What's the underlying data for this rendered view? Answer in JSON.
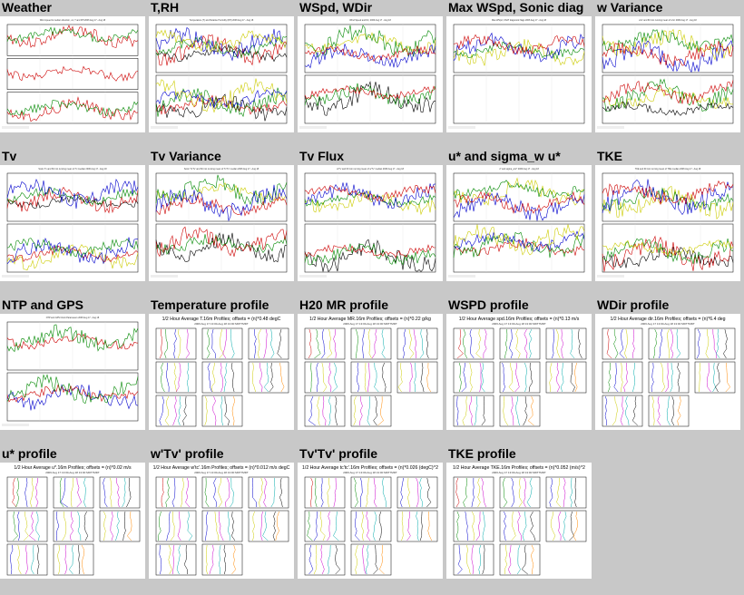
{
  "page": {
    "background": "#c8c8c8"
  },
  "tiles": [
    {
      "id": "weather",
      "title": "Weather",
      "kind": "ts",
      "panels": [
        [
          "#cc0000",
          "#008800"
        ],
        [
          "#cc0000"
        ],
        [
          "#cc0000",
          "#008800"
        ]
      ],
      "caption": "Wind speed & median direction, u1, T and RH  2006 Aug 17 - Aug 18"
    },
    {
      "id": "t-rh",
      "title": "T,RH",
      "kind": "ts",
      "panels": [
        [
          "#000000",
          "#cc0000",
          "#008800",
          "#0000cc",
          "#cccc00"
        ],
        [
          "#000000",
          "#cc0000",
          "#008800",
          "#0000cc",
          "#cccc00"
        ]
      ],
      "caption": "Temperature (T) and Relative Humidity (RH) 2006 Aug 17 - Aug 18"
    },
    {
      "id": "wspd-wdir",
      "title": "WSpd, WDir",
      "kind": "ts",
      "panels": [
        [
          "#cccc00",
          "#008800",
          "#0000cc",
          "#cc0000"
        ],
        [
          "#000000",
          "#008800",
          "#cc0000"
        ]
      ],
      "caption": "Wind Speed and Dir, 2006 Aug 17 - Aug 18"
    },
    {
      "id": "max-wspd",
      "title": "Max WSpd, Sonic diag",
      "kind": "ts",
      "panels": [
        [
          "#cccc00",
          "#008800",
          "#0000cc",
          "#cc0000"
        ],
        []
      ],
      "caption": "Max WSpd, CSAT diagnostic flags  2006 Aug 17 - Aug 18"
    },
    {
      "id": "w-variance",
      "title": "w Variance",
      "kind": "ts",
      "panels": [
        [
          "#cccc00",
          "#008800",
          "#0000cc",
          "#cc0000"
        ],
        [
          "#cccc00",
          "#008800",
          "#cc0000",
          "#000000"
        ]
      ],
      "caption": "w'w' and 60 min running mean of w'w'  2006 Aug 17 - Aug 18"
    },
    {
      "id": "tv",
      "title": "Tv",
      "kind": "ts",
      "panels": [
        [
          "#000000",
          "#cc0000",
          "#008800",
          "#0000cc"
        ],
        [
          "#cccc00",
          "#cc0000",
          "#0000cc",
          "#008800"
        ]
      ],
      "caption": "Sonic Tv and 60 min running mean of Tv median 2006 Aug 17 - Aug 18"
    },
    {
      "id": "tv-variance",
      "title": "Tv Variance",
      "kind": "ts",
      "panels": [
        [
          "#cccc00",
          "#008800",
          "#cc0000",
          "#0000cc"
        ],
        [
          "#000000",
          "#008800",
          "#cc0000"
        ]
      ],
      "caption": "Sonic Tv'Tv' and 60 min running mean of Tv'Tv' median 2006 Aug 17 - Aug 18"
    },
    {
      "id": "tv-flux",
      "title": "Tv Flux",
      "kind": "ts",
      "panels": [
        [
          "#cccc00",
          "#008800",
          "#0000cc",
          "#cc0000"
        ],
        [
          "#000000",
          "#008800",
          "#cc0000"
        ]
      ],
      "caption": "w'Tv' and 60 min running mean of w'Tv' median 2006 Aug 17 - Aug 18"
    },
    {
      "id": "ustar",
      "title": "u* and sigma_w u*",
      "kind": "ts",
      "panels": [
        [
          "#cccc00",
          "#008800",
          "#0000cc",
          "#cc0000"
        ],
        [
          "#cc0000",
          "#008800",
          "#0000cc",
          "#cccc00"
        ]
      ],
      "caption": "u* and sigma_w/u*  2006 Aug 17 - Aug 18"
    },
    {
      "id": "tke",
      "title": "TKE",
      "kind": "ts",
      "panels": [
        [
          "#cccc00",
          "#008800",
          "#0000cc",
          "#cc0000"
        ],
        [
          "#000000",
          "#cc0000",
          "#008800",
          "#cccc00"
        ]
      ],
      "caption": "TKE and 60 min running mean of TKE median 2006 Aug 17 - Aug 18"
    },
    {
      "id": "ntp-gps",
      "title": "NTP and GPS",
      "kind": "ts",
      "panels": [
        [
          "#cc0000",
          "#008800"
        ],
        [
          "#0000cc",
          "#cc0000",
          "#008800"
        ]
      ],
      "caption": "NTP and GPS Clock Parameters 2006 Aug 17 - Aug 18"
    },
    {
      "id": "temperature-profile",
      "title": "Temperature profile",
      "kind": "profile",
      "caption": "1/2 Hour Average T.16m Profiles; offsets = (n)*0.48 degC",
      "sub": "2006 Aug 17 13:00-Aug 18 13:00 MDT7MDT"
    },
    {
      "id": "h2o-mr-profile",
      "title": "H20 MR profile",
      "kind": "profile",
      "caption": "1/2 Hour Average MR.16m Profiles; offsets = (n)*0.22 g/kg",
      "sub": "2006 Aug 17 13:00-Aug 18 13:00 MDT7MDT"
    },
    {
      "id": "wspd-profile",
      "title": "WSPD profile",
      "kind": "profile",
      "caption": "1/2 Hour Average spd.16m Profiles; offsets = (n)*0.13 m/s",
      "sub": "2006 Aug 17 13:00-Aug 18 13:00 MDT7MDT"
    },
    {
      "id": "wdir-profile",
      "title": "WDir profile",
      "kind": "profile",
      "caption": "1/2 Hour Average dir.16m Profiles; offsets = (n)*6.4 deg",
      "sub": "2006 Aug 17 13:00-Aug 18 13:00 MDT7MDT"
    },
    {
      "id": "ustar-profile",
      "title": "u* profile",
      "kind": "profile",
      "caption": "1/2 Hour Average u*.16m Profiles; offsets = (n)*0.02 m/s",
      "sub": "2006 Aug 17 13:00-Aug 18 13:00 MDT7MDT"
    },
    {
      "id": "wtv-profile",
      "title": "w'Tv' profile",
      "kind": "profile",
      "caption": "1/2 Hour Average w'tc'.16m Profiles; offsets = (n)*0.012 m/s degC",
      "sub": "2006 Aug 17 13:00-Aug 18 13:00 MDT7MDT"
    },
    {
      "id": "tvtv-profile",
      "title": "Tv'Tv' profile",
      "kind": "profile",
      "caption": "1/2 Hour Average tc'tc'.16m Profiles; offsets = (n)*0.026 (degC)^2",
      "sub": "2006 Aug 17 13:00-Aug 18 13:00 MDT7MDT"
    },
    {
      "id": "tke-profile",
      "title": "TKE profile",
      "kind": "profile",
      "caption": "1/2 Hour Average TKE.16m Profiles; offsets = (n)*0.052 (m/s)^2",
      "sub": "2006 Aug 17 13:00-Aug 18 13:00 MDT7MDT"
    }
  ]
}
